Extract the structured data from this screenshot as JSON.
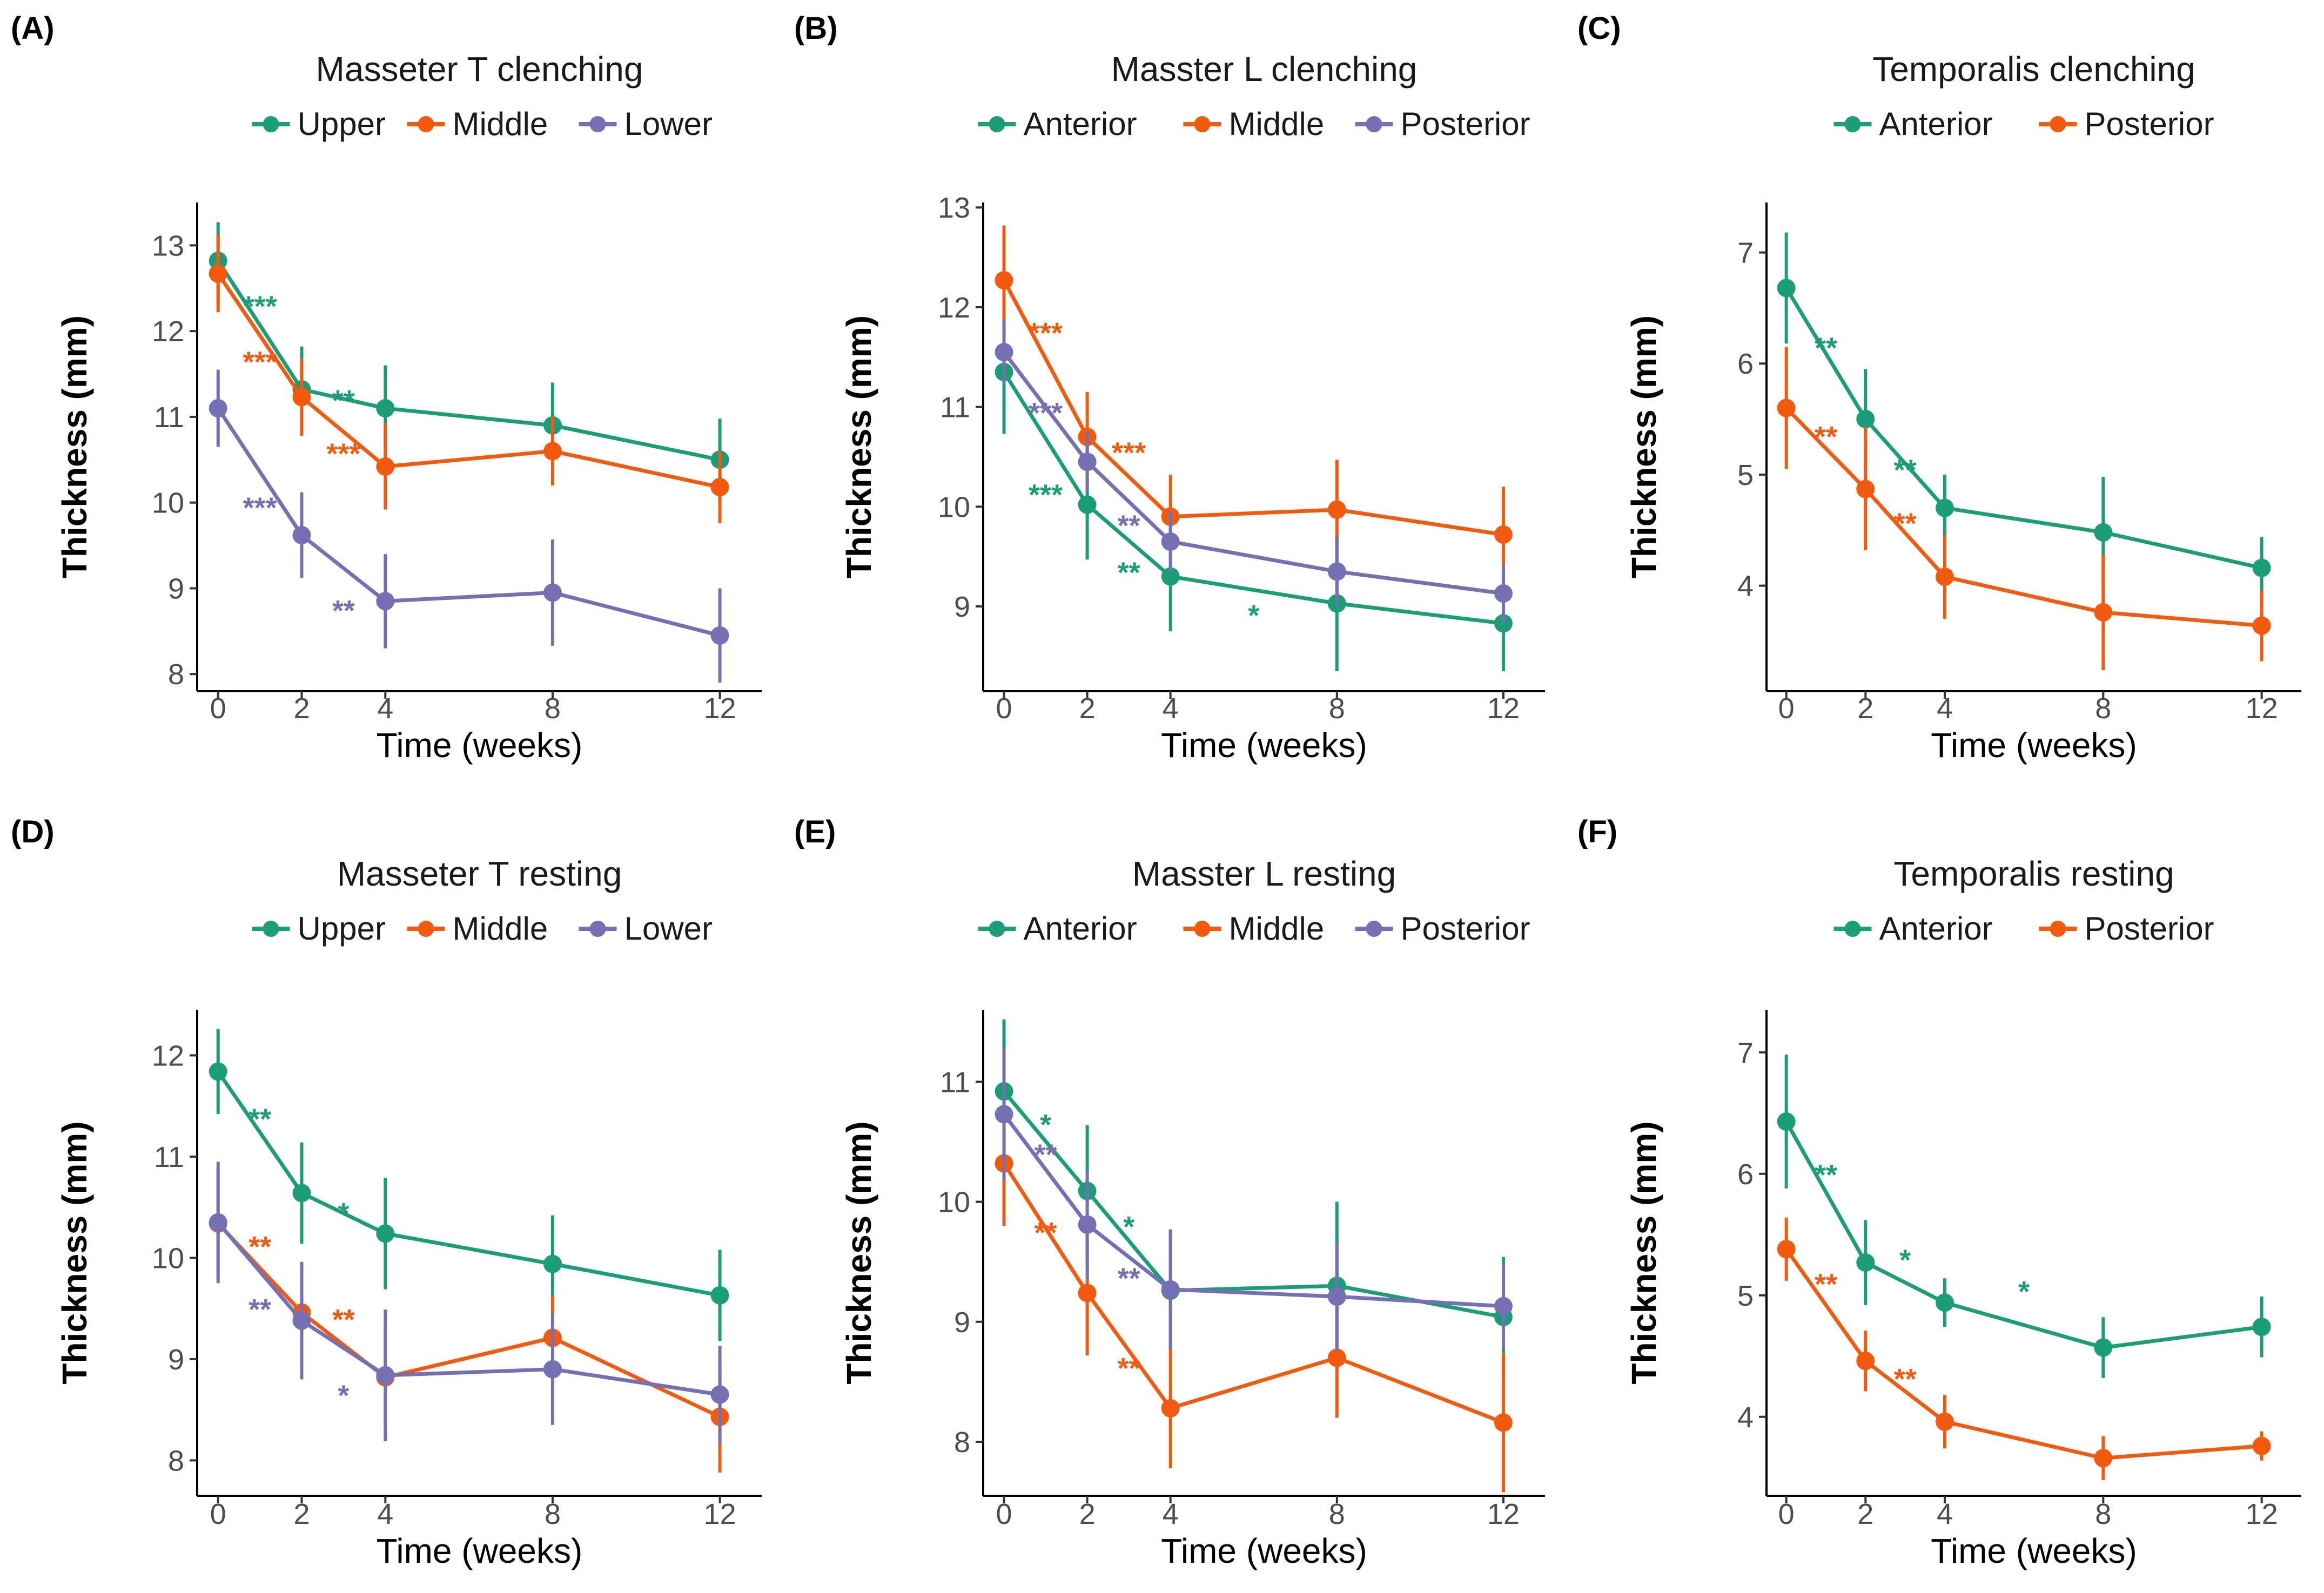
{
  "figure": {
    "background": "#ffffff"
  },
  "palette": {
    "green": "#1b9e77",
    "orange": "#f25a0f",
    "purple": "#7570b3"
  },
  "chart_data": [
    {
      "type": "line",
      "panel_label": "(A)",
      "title": "Masseter T clenching",
      "xlabel": "Time (weeks)",
      "ylabel": "Thickness (mm)",
      "x": [
        0,
        2,
        4,
        8,
        12
      ],
      "x_ticks": [
        0,
        2,
        4,
        8,
        12
      ],
      "xlim": [
        -0.5,
        13.0
      ],
      "ylim": [
        7.8,
        13.5
      ],
      "y_ticks": [
        8,
        9,
        10,
        11,
        12,
        13
      ],
      "legend_position": "top",
      "series": [
        {
          "name": "Upper",
          "color": "#1b9e77",
          "values": [
            12.82,
            11.32,
            11.1,
            10.9,
            10.5
          ],
          "errors": [
            0.45,
            0.5,
            0.5,
            0.5,
            0.48
          ]
        },
        {
          "name": "Middle",
          "color": "#f25a0f",
          "values": [
            12.67,
            11.23,
            10.42,
            10.6,
            10.18
          ],
          "errors": [
            0.45,
            0.45,
            0.5,
            0.4,
            0.42
          ]
        },
        {
          "name": "Lower",
          "color": "#7570b3",
          "values": [
            11.1,
            9.62,
            8.85,
            8.95,
            8.45
          ],
          "errors": [
            0.45,
            0.5,
            0.55,
            0.62,
            0.55
          ]
        }
      ],
      "annotations": [
        {
          "text": "***",
          "x": 1.0,
          "y": 12.3,
          "color": "#1b9e77"
        },
        {
          "text": "***",
          "x": 1.0,
          "y": 11.65,
          "color": "#f25a0f"
        },
        {
          "text": "**",
          "x": 3.0,
          "y": 11.2,
          "color": "#1b9e77"
        },
        {
          "text": "***",
          "x": 3.0,
          "y": 10.58,
          "color": "#f25a0f"
        },
        {
          "text": "***",
          "x": 1.0,
          "y": 9.95,
          "color": "#7570b3"
        },
        {
          "text": "**",
          "x": 3.0,
          "y": 8.75,
          "color": "#7570b3"
        }
      ]
    },
    {
      "type": "line",
      "panel_label": "(B)",
      "title": "Masster L clenching",
      "xlabel": "Time (weeks)",
      "ylabel": "Thickness (mm)",
      "x": [
        0,
        2,
        4,
        8,
        12
      ],
      "x_ticks": [
        0,
        2,
        4,
        8,
        12
      ],
      "xlim": [
        -0.5,
        13.0
      ],
      "ylim": [
        8.15,
        13.05
      ],
      "y_ticks": [
        9,
        10,
        11,
        12,
        13
      ],
      "legend_position": "top",
      "series": [
        {
          "name": "Anterior",
          "color": "#1b9e77",
          "values": [
            11.35,
            10.02,
            9.3,
            9.03,
            8.83
          ],
          "errors": [
            0.62,
            0.55,
            0.55,
            0.68,
            0.48
          ]
        },
        {
          "name": "Middle",
          "color": "#f25a0f",
          "values": [
            12.27,
            10.7,
            9.9,
            9.97,
            9.72
          ],
          "errors": [
            0.55,
            0.45,
            0.42,
            0.5,
            0.48
          ]
        },
        {
          "name": "Posterior",
          "color": "#7570b3",
          "values": [
            11.55,
            10.45,
            9.65,
            9.35,
            9.13
          ],
          "errors": [
            0.32,
            0.3,
            0.3,
            0.35,
            0.3
          ]
        }
      ],
      "annotations": [
        {
          "text": "***",
          "x": 1.0,
          "y": 11.75,
          "color": "#f25a0f"
        },
        {
          "text": "***",
          "x": 1.0,
          "y": 10.95,
          "color": "#7570b3"
        },
        {
          "text": "***",
          "x": 1.0,
          "y": 10.13,
          "color": "#1b9e77"
        },
        {
          "text": "***",
          "x": 3.0,
          "y": 10.55,
          "color": "#f25a0f"
        },
        {
          "text": "**",
          "x": 3.0,
          "y": 9.82,
          "color": "#7570b3"
        },
        {
          "text": "**",
          "x": 3.0,
          "y": 9.35,
          "color": "#1b9e77"
        },
        {
          "text": "*",
          "x": 6.0,
          "y": 8.92,
          "color": "#1b9e77"
        }
      ]
    },
    {
      "type": "line",
      "panel_label": "(C)",
      "title": "Temporalis clenching",
      "xlabel": "Time (weeks)",
      "ylabel": "Thickness (mm)",
      "x": [
        0,
        2,
        4,
        8,
        12
      ],
      "x_ticks": [
        0,
        2,
        4,
        8,
        12
      ],
      "xlim": [
        -0.5,
        13.0
      ],
      "ylim": [
        3.05,
        7.45
      ],
      "y_ticks": [
        4,
        5,
        6,
        7
      ],
      "legend_position": "top",
      "series": [
        {
          "name": "Anterior",
          "color": "#1b9e77",
          "values": [
            6.68,
            5.5,
            4.7,
            4.48,
            4.16
          ],
          "errors": [
            0.5,
            0.45,
            0.3,
            0.5,
            0.28
          ]
        },
        {
          "name": "Posterior",
          "color": "#f25a0f",
          "values": [
            5.6,
            4.87,
            4.08,
            3.76,
            3.64
          ],
          "errors": [
            0.55,
            0.55,
            0.38,
            0.52,
            0.32
          ]
        }
      ],
      "annotations": [
        {
          "text": "**",
          "x": 1.0,
          "y": 6.15,
          "color": "#1b9e77"
        },
        {
          "text": "**",
          "x": 1.0,
          "y": 5.35,
          "color": "#f25a0f"
        },
        {
          "text": "**",
          "x": 3.0,
          "y": 5.05,
          "color": "#1b9e77"
        },
        {
          "text": "**",
          "x": 3.0,
          "y": 4.57,
          "color": "#f25a0f"
        }
      ]
    },
    {
      "type": "line",
      "panel_label": "(D)",
      "title": "Masseter T resting",
      "xlabel": "Time (weeks)",
      "ylabel": "Thickness (mm)",
      "x": [
        0,
        2,
        4,
        8,
        12
      ],
      "x_ticks": [
        0,
        2,
        4,
        8,
        12
      ],
      "xlim": [
        -0.5,
        13.0
      ],
      "ylim": [
        7.65,
        12.45
      ],
      "y_ticks": [
        8,
        9,
        10,
        11,
        12
      ],
      "legend_position": "top",
      "series": [
        {
          "name": "Upper",
          "color": "#1b9e77",
          "values": [
            11.84,
            10.64,
            10.24,
            9.94,
            9.63
          ],
          "errors": [
            0.42,
            0.5,
            0.55,
            0.48,
            0.45
          ]
        },
        {
          "name": "Middle",
          "color": "#f25a0f",
          "values": [
            10.34,
            9.46,
            8.82,
            9.21,
            8.43
          ],
          "errors": [
            0.55,
            0.48,
            0.5,
            0.42,
            0.55
          ]
        },
        {
          "name": "Lower",
          "color": "#7570b3",
          "values": [
            10.35,
            9.38,
            8.84,
            8.9,
            8.65
          ],
          "errors": [
            0.6,
            0.58,
            0.65,
            0.55,
            0.48
          ]
        }
      ],
      "annotations": [
        {
          "text": "**",
          "x": 1.0,
          "y": 11.38,
          "color": "#1b9e77"
        },
        {
          "text": "*",
          "x": 3.0,
          "y": 10.45,
          "color": "#1b9e77"
        },
        {
          "text": "**",
          "x": 1.0,
          "y": 10.12,
          "color": "#f25a0f"
        },
        {
          "text": "**",
          "x": 3.0,
          "y": 9.4,
          "color": "#f25a0f"
        },
        {
          "text": "**",
          "x": 1.0,
          "y": 9.5,
          "color": "#7570b3"
        },
        {
          "text": "*",
          "x": 3.0,
          "y": 8.65,
          "color": "#7570b3"
        }
      ]
    },
    {
      "type": "line",
      "panel_label": "(E)",
      "title": "Masster L resting",
      "xlabel": "Time (weeks)",
      "ylabel": "Thickness (mm)",
      "x": [
        0,
        2,
        4,
        8,
        12
      ],
      "x_ticks": [
        0,
        2,
        4,
        8,
        12
      ],
      "xlim": [
        -0.5,
        13.0
      ],
      "ylim": [
        7.55,
        11.6
      ],
      "y_ticks": [
        8,
        9,
        10,
        11
      ],
      "legend_position": "top",
      "series": [
        {
          "name": "Anterior",
          "color": "#1b9e77",
          "values": [
            10.92,
            10.09,
            9.26,
            9.3,
            9.04
          ],
          "errors": [
            0.6,
            0.55,
            0.5,
            0.7,
            0.5
          ]
        },
        {
          "name": "Middle",
          "color": "#f25a0f",
          "values": [
            10.32,
            9.24,
            8.28,
            8.7,
            8.16
          ],
          "errors": [
            0.52,
            0.52,
            0.5,
            0.5,
            0.58
          ]
        },
        {
          "name": "Posterior",
          "color": "#7570b3",
          "values": [
            10.73,
            9.81,
            9.27,
            9.21,
            9.13
          ],
          "errors": [
            0.55,
            0.45,
            0.5,
            0.45,
            0.35
          ]
        }
      ],
      "annotations": [
        {
          "text": "*",
          "x": 1.0,
          "y": 10.65,
          "color": "#1b9e77"
        },
        {
          "text": "**",
          "x": 1.0,
          "y": 10.4,
          "color": "#7570b3"
        },
        {
          "text": "**",
          "x": 1.0,
          "y": 9.75,
          "color": "#f25a0f"
        },
        {
          "text": "*",
          "x": 3.0,
          "y": 9.8,
          "color": "#1b9e77"
        },
        {
          "text": "**",
          "x": 3.0,
          "y": 9.37,
          "color": "#7570b3"
        },
        {
          "text": "**",
          "x": 3.0,
          "y": 8.62,
          "color": "#f25a0f"
        }
      ]
    },
    {
      "type": "line",
      "panel_label": "(F)",
      "title": "Temporalis resting",
      "xlabel": "Time (weeks)",
      "ylabel": "Thickness (mm)",
      "x": [
        0,
        2,
        4,
        8,
        12
      ],
      "x_ticks": [
        0,
        2,
        4,
        8,
        12
      ],
      "xlim": [
        -0.5,
        13.0
      ],
      "ylim": [
        3.35,
        7.35
      ],
      "y_ticks": [
        4,
        5,
        6,
        7
      ],
      "legend_position": "top",
      "series": [
        {
          "name": "Anterior",
          "color": "#1b9e77",
          "values": [
            6.43,
            5.27,
            4.94,
            4.57,
            4.74
          ],
          "errors": [
            0.55,
            0.35,
            0.2,
            0.25,
            0.25
          ]
        },
        {
          "name": "Posterior",
          "color": "#f25a0f",
          "values": [
            5.38,
            4.46,
            3.96,
            3.66,
            3.76
          ],
          "errors": [
            0.26,
            0.25,
            0.22,
            0.18,
            0.12
          ]
        }
      ],
      "annotations": [
        {
          "text": "**",
          "x": 1.0,
          "y": 6.0,
          "color": "#1b9e77"
        },
        {
          "text": "*",
          "x": 3.0,
          "y": 5.3,
          "color": "#1b9e77"
        },
        {
          "text": "*",
          "x": 6.0,
          "y": 5.04,
          "color": "#1b9e77"
        },
        {
          "text": "**",
          "x": 1.0,
          "y": 5.1,
          "color": "#f25a0f"
        },
        {
          "text": "**",
          "x": 3.0,
          "y": 4.32,
          "color": "#f25a0f"
        }
      ]
    }
  ]
}
